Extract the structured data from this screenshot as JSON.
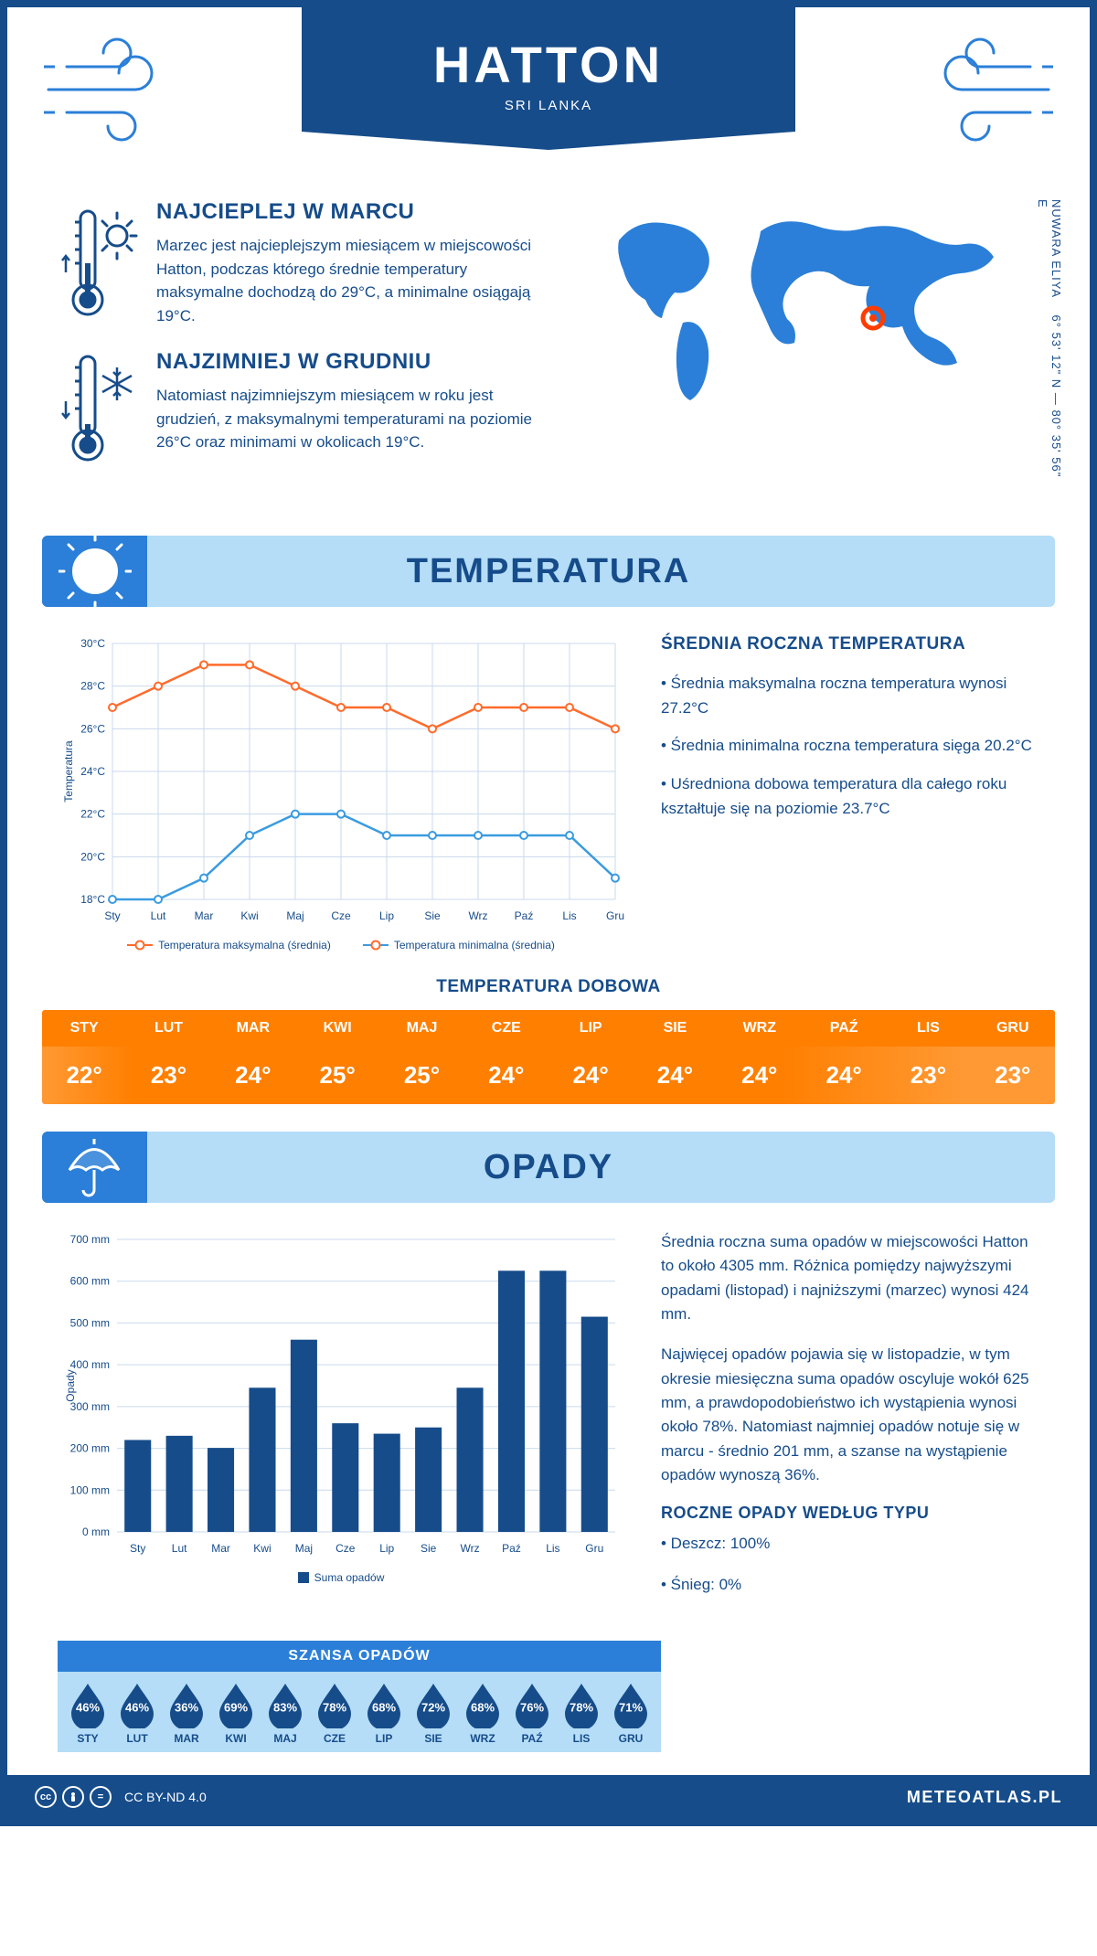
{
  "header": {
    "title": "HATTON",
    "subtitle": "SRI LANKA"
  },
  "coords": {
    "lat": "6° 53' 12\" N",
    "sep": "—",
    "lon": "80° 35' 56\" E",
    "region": "NUWARA ELIYA"
  },
  "facts": {
    "warm": {
      "title": "NAJCIEPLEJ W MARCU",
      "text": "Marzec jest najcieplejszym miesiącem w miejscowości Hatton, podczas którego średnie temperatury maksymalne dochodzą do 29°C, a minimalne osiągają 19°C."
    },
    "cold": {
      "title": "NAJZIMNIEJ W GRUDNIU",
      "text": "Natomiast najzimniejszym miesiącem w roku jest grudzień, z maksymalnymi temperaturami na poziomie 26°C oraz minimami w okolicach 19°C."
    }
  },
  "sections": {
    "temp": "TEMPERATURA",
    "precip": "OPADY"
  },
  "temp_chart": {
    "months": [
      "Sty",
      "Lut",
      "Mar",
      "Kwi",
      "Maj",
      "Cze",
      "Lip",
      "Sie",
      "Wrz",
      "Paź",
      "Lis",
      "Gru"
    ],
    "max": [
      27,
      28,
      29,
      29,
      28,
      27,
      27,
      26,
      27,
      27,
      27,
      26
    ],
    "min": [
      18,
      18,
      19,
      21,
      22,
      22,
      21,
      21,
      21,
      21,
      21,
      19
    ],
    "ylim": [
      18,
      30
    ],
    "ytick_step": 2,
    "ylabel": "Temperatura",
    "grid_color": "#c9d9ec",
    "max_color": "#ff6b2b",
    "min_color": "#3a9be0",
    "legend_max": "Temperatura maksymalna (średnia)",
    "legend_min": "Temperatura minimalna (średnia)",
    "label_fontsize": 11,
    "title_fontsize": 19
  },
  "temp_text": {
    "heading": "ŚREDNIA ROCZNA TEMPERATURA",
    "b1": "• Średnia maksymalna roczna temperatura wynosi 27.2°C",
    "b2": "• Średnia minimalna roczna temperatura sięga 20.2°C",
    "b3": "• Uśredniona dobowa temperatura dla całego roku kształtuje się na poziomie 23.7°C"
  },
  "daily_temp": {
    "heading": "TEMPERATURA DOBOWA",
    "months": [
      "STY",
      "LUT",
      "MAR",
      "KWI",
      "MAJ",
      "CZE",
      "LIP",
      "SIE",
      "WRZ",
      "PAŹ",
      "LIS",
      "GRU"
    ],
    "values": [
      "22°",
      "23°",
      "24°",
      "25°",
      "25°",
      "24°",
      "24°",
      "24°",
      "24°",
      "24°",
      "23°",
      "23°"
    ],
    "header_bg": "#ff7f00",
    "row_bg": "#ff8c1a"
  },
  "precip_chart": {
    "months": [
      "Sty",
      "Lut",
      "Mar",
      "Kwi",
      "Maj",
      "Cze",
      "Lip",
      "Sie",
      "Wrz",
      "Paź",
      "Lis",
      "Gru"
    ],
    "values": [
      220,
      230,
      201,
      345,
      460,
      260,
      235,
      250,
      345,
      625,
      625,
      515
    ],
    "ylim": [
      0,
      700
    ],
    "ytick_step": 100,
    "ylabel": "Opady",
    "bar_color": "#164c8a",
    "grid_color": "#c9d9ec",
    "legend": "Suma opadów"
  },
  "precip_text": {
    "p1": "Średnia roczna suma opadów w miejscowości Hatton to około 4305 mm. Różnica pomiędzy najwyższymi opadami (listopad) i najniższymi (marzec) wynosi 424 mm.",
    "p2": "Najwięcej opadów pojawia się w listopadzie, w tym okresie miesięczna suma opadów oscyluje wokół 625 mm, a prawdopodobieństwo ich wystąpienia wynosi około 78%. Natomiast najmniej opadów notuje się w marcu - średnio 201 mm, a szanse na wystąpienie opadów wynoszą 36%.",
    "heading": "ROCZNE OPADY WEDŁUG TYPU",
    "b1": "• Deszcz: 100%",
    "b2": "• Śnieg: 0%"
  },
  "chance": {
    "heading": "SZANSA OPADÓW",
    "months": [
      "STY",
      "LUT",
      "MAR",
      "KWI",
      "MAJ",
      "CZE",
      "LIP",
      "SIE",
      "WRZ",
      "PAŹ",
      "LIS",
      "GRU"
    ],
    "values": [
      "46%",
      "46%",
      "36%",
      "69%",
      "83%",
      "78%",
      "68%",
      "72%",
      "68%",
      "76%",
      "78%",
      "71%"
    ],
    "drop_color": "#164c8a"
  },
  "footer": {
    "license": "CC BY-ND 4.0",
    "site": "METEOATLAS.PL"
  }
}
